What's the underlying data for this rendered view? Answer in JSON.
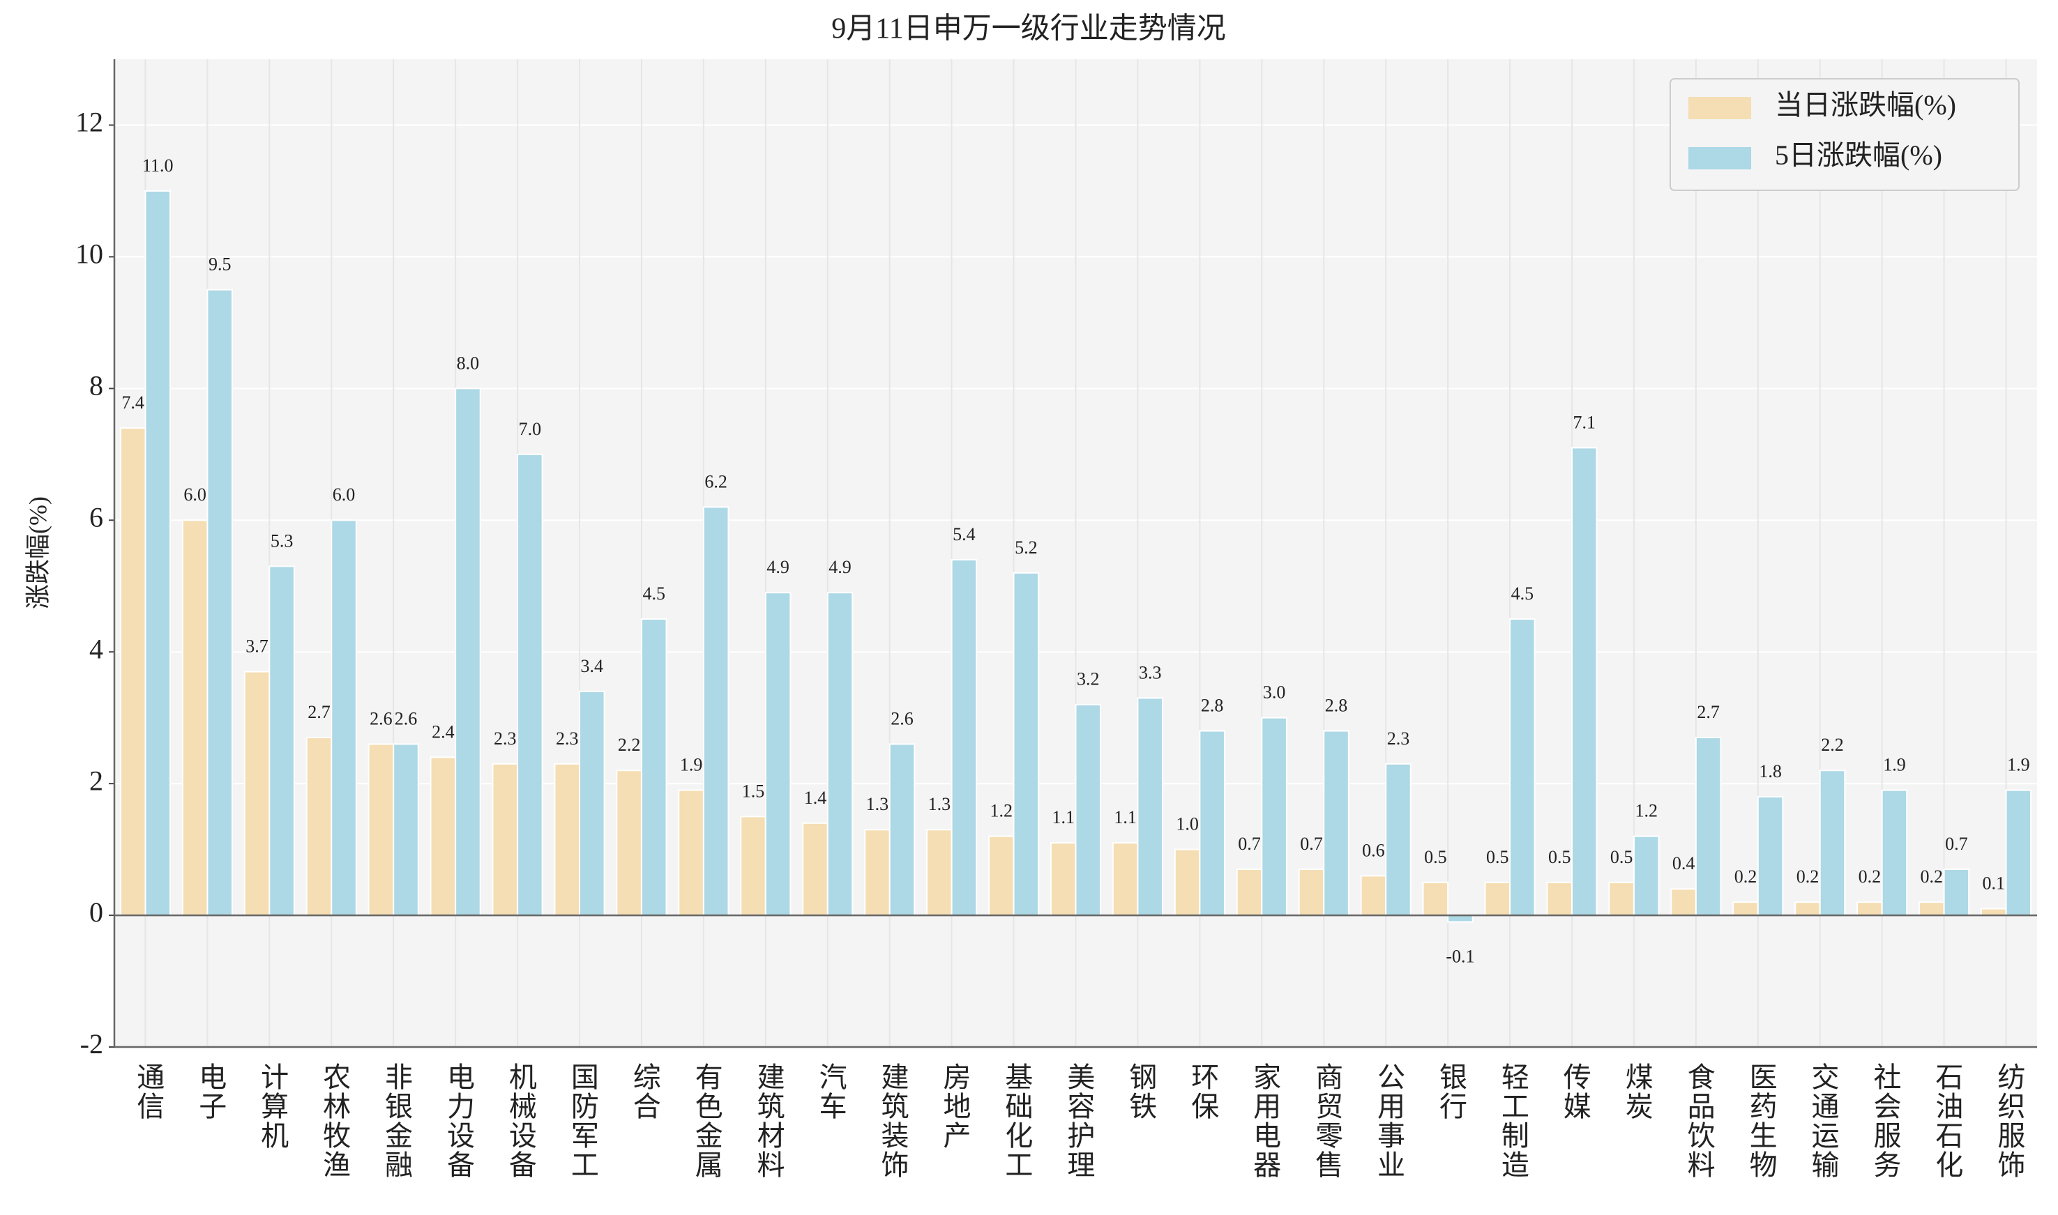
{
  "chart_data": {
    "type": "bar",
    "title": "9月11日申万一级行业走势情况",
    "ylabel": "涨跌幅(%)",
    "categories": [
      "通信",
      "电子",
      "计算机",
      "农林牧渔",
      "非银金融",
      "电力设备",
      "机械设备",
      "国防军工",
      "综合",
      "有色金属",
      "建筑材料",
      "汽车",
      "建筑装饰",
      "房地产",
      "基础化工",
      "美容护理",
      "钢铁",
      "环保",
      "家用电器",
      "商贸零售",
      "公用事业",
      "银行",
      "轻工制造",
      "传媒",
      "煤炭",
      "食品饮料",
      "医药生物",
      "交通运输",
      "社会服务",
      "石油石化",
      "纺织服饰"
    ],
    "series": [
      {
        "name": "当日涨跌幅(%)",
        "color": "#f5deb3",
        "values": [
          7.4,
          6.0,
          3.7,
          2.7,
          2.6,
          2.4,
          2.3,
          2.3,
          2.2,
          1.9,
          1.5,
          1.4,
          1.3,
          1.3,
          1.2,
          1.1,
          1.1,
          1.0,
          0.7,
          0.7,
          0.6,
          0.5,
          0.5,
          0.5,
          0.5,
          0.4,
          0.2,
          0.2,
          0.2,
          0.2,
          0.1
        ],
        "value_labels": [
          "7.4",
          "6.0",
          "3.7",
          "2.7",
          "2.6",
          "2.4",
          "2.3",
          "2.3",
          "2.2",
          "1.9",
          "1.5",
          "1.4",
          "1.3",
          "1.3",
          "1.2",
          "1.1",
          "1.1",
          "1.0",
          "0.7",
          "0.7",
          "0.6",
          "0.5",
          "0.5",
          "0.5",
          "0.5",
          "0.4",
          "0.2",
          "0.2",
          "0.2",
          "0.2",
          "0.1"
        ]
      },
      {
        "name": "5日涨跌幅(%)",
        "color": "#add8e6",
        "values": [
          11.0,
          9.5,
          5.3,
          6.0,
          2.6,
          8.0,
          7.0,
          3.4,
          4.5,
          6.2,
          4.9,
          4.9,
          2.6,
          5.4,
          5.2,
          3.2,
          3.3,
          2.8,
          3.0,
          2.8,
          2.3,
          -0.1,
          4.5,
          7.1,
          1.2,
          2.7,
          1.8,
          2.2,
          1.9,
          0.7,
          1.9
        ],
        "value_labels": [
          "11.0",
          "9.5",
          "5.3",
          "6.0",
          "2.6",
          "8.0",
          "7.0",
          "3.4",
          "4.5",
          "6.2",
          "4.9",
          "4.9",
          "2.6",
          "5.4",
          "5.2",
          "3.2",
          "3.3",
          "2.8",
          "3.0",
          "2.8",
          "2.3",
          "-0.1",
          "4.5",
          "7.1",
          "1.2",
          "2.7",
          "1.8",
          "2.2",
          "1.9",
          "0.7",
          "1.9"
        ]
      }
    ],
    "ylim": [
      -2,
      13
    ],
    "yticks": [
      -2,
      0,
      2,
      4,
      6,
      8,
      10,
      12
    ],
    "grid": true,
    "legend": "upper right"
  }
}
